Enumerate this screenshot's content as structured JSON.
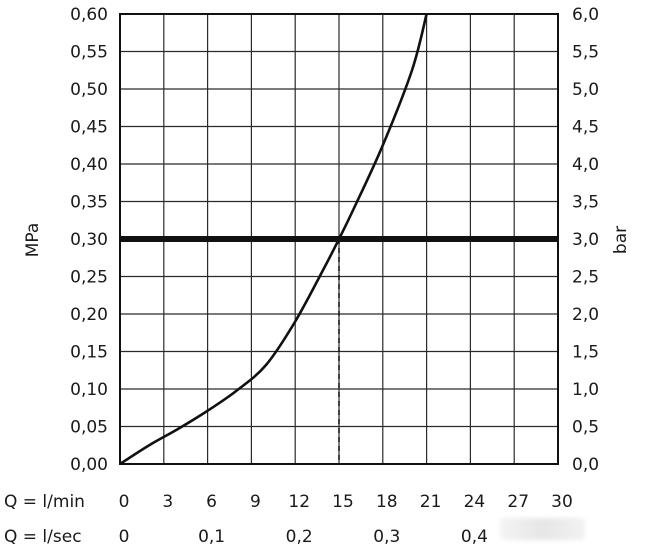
{
  "chart_data": {
    "type": "line",
    "ylabel_left": "MPa",
    "ylabel_right": "bar",
    "ylim": [
      0,
      0.6
    ],
    "y_ticks_left": [
      "0,00",
      "0,05",
      "0,10",
      "0,15",
      "0,20",
      "0,25",
      "0,30",
      "0,35",
      "0,40",
      "0,45",
      "0,50",
      "0,55",
      "0,60"
    ],
    "y_ticks_right": [
      "0,0",
      "0,5",
      "1,0",
      "1,5",
      "2,0",
      "2,5",
      "3,0",
      "3,5",
      "4,0",
      "4,5",
      "5,0",
      "5,5",
      "6,0"
    ],
    "xlim": [
      0,
      30
    ],
    "x_ticks": [
      "0",
      "3",
      "6",
      "9",
      "12",
      "15",
      "18",
      "21",
      "24",
      "27",
      "30"
    ],
    "x_row_label": "Q = l/min",
    "x2_row_label": "Q = l/sec",
    "x2_ticks": [
      {
        "value": 0,
        "label": "0"
      },
      {
        "value": 6,
        "label": "0,1"
      },
      {
        "value": 12,
        "label": "0,2"
      },
      {
        "value": 18,
        "label": "0,3"
      },
      {
        "value": 24,
        "label": "0,4"
      }
    ],
    "grid": true,
    "series": [
      {
        "x": [
          0,
          2,
          4,
          6,
          8,
          10,
          12,
          14,
          15,
          16,
          18,
          20,
          21
        ],
        "y": [
          0,
          0.025,
          0.047,
          0.071,
          0.098,
          0.132,
          0.19,
          0.262,
          0.3,
          0.34,
          0.425,
          0.525,
          0.6
        ]
      }
    ],
    "reference_line": {
      "y": 0.3
    },
    "marker": {
      "x": 15,
      "y": 0.3
    }
  }
}
